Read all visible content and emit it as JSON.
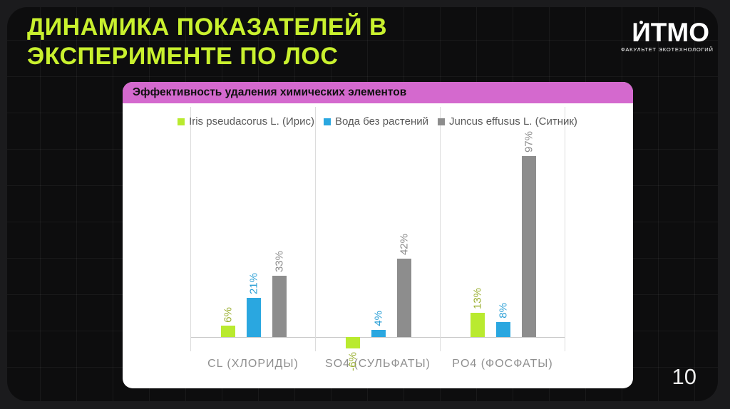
{
  "slide": {
    "title_line1": "ДИНАМИКА ПОКАЗАТЕЛЕЙ В",
    "title_line2": "ЭКСПЕРИМЕНТЕ ПО ЛОС",
    "accent_color": "#c9f12e",
    "page_number": "10"
  },
  "logo": {
    "wordmark": "ИТМО",
    "subtitle": "ФАКУЛЬТЕТ ЭКОТЕХНОЛОГИЙ"
  },
  "chart_data": {
    "type": "bar",
    "title": "Эффективность удаления химических элементов",
    "title_bg_color": "#d469ce",
    "categories": [
      "CL (ХЛОРИДЫ)",
      "SO4 (СУЛЬФАТЫ)",
      "PO4 (ФОСФАТЫ)"
    ],
    "series": [
      {
        "name": "Iris pseudacorus L. (Ирис)",
        "color": "#b9ea2f",
        "label_color": "#99ae2e",
        "values": [
          6,
          -6,
          13
        ]
      },
      {
        "name": "Вода без растений",
        "color": "#2aa7e0",
        "label_color": "#2a9fd6",
        "values": [
          21,
          4,
          8
        ]
      },
      {
        "name": "Juncus effusus L. (Ситник)",
        "color": "#8d8d8d",
        "label_color": "#8c8c8c",
        "values": [
          33,
          42,
          97
        ]
      }
    ],
    "value_suffix": "%",
    "value_labels": "rotated-90",
    "legend_position": "top",
    "ylim": [
      -8,
      123
    ],
    "y_axis_visible": false,
    "grid": "category-separators"
  }
}
